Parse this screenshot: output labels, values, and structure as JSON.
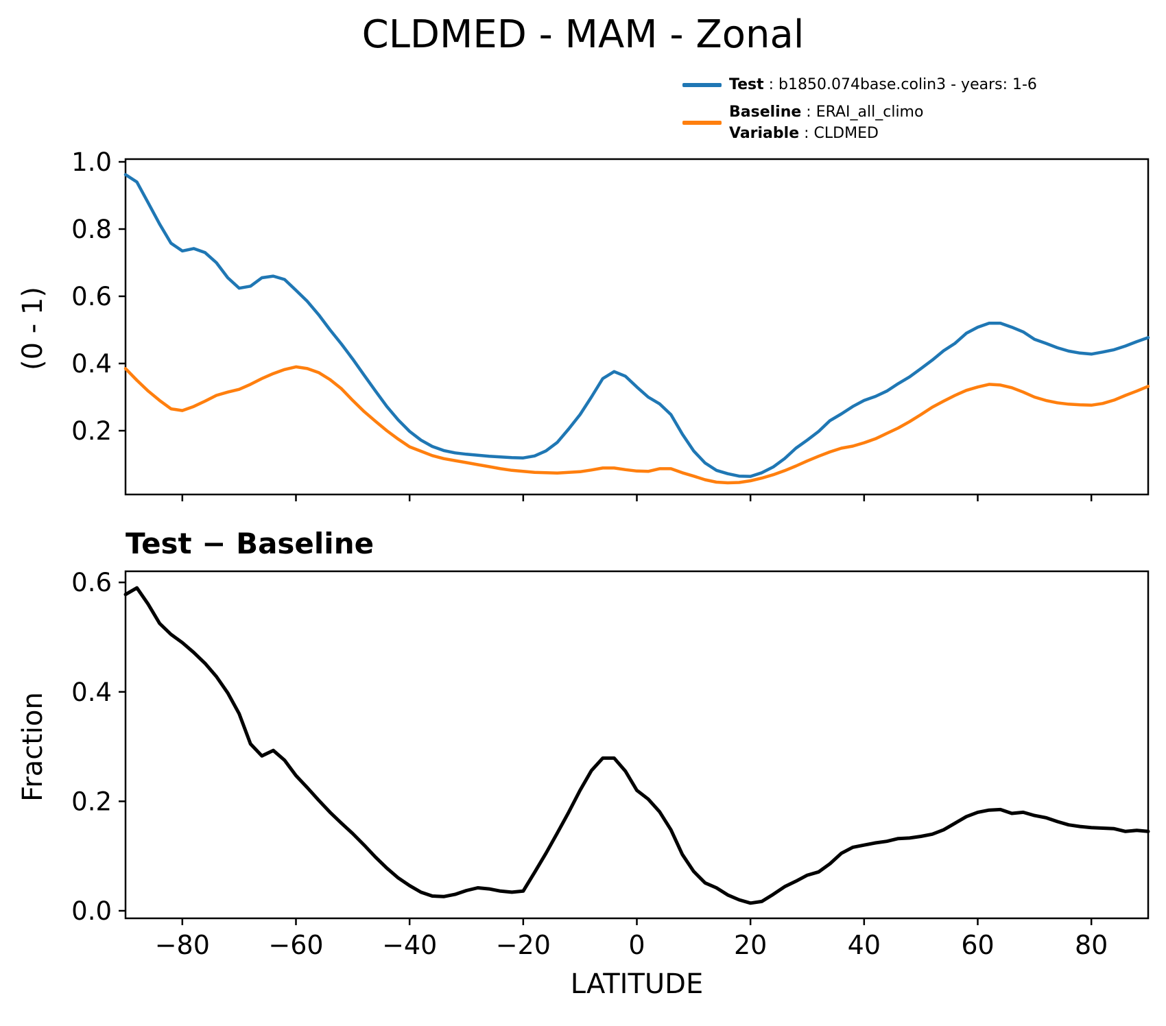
{
  "title": "CLDMED - MAM - Zonal",
  "legend": {
    "test": {
      "bold": "Test",
      "rest": " : b1850.074base.colin3 - years: 1-6"
    },
    "baseline": {
      "bold": "Baseline",
      "rest": " : ERAI_all_climo"
    },
    "variable": {
      "bold": "Variable",
      "rest": " : CLDMED"
    }
  },
  "panels": {
    "top": {
      "ylabel": "(0 - 1)"
    },
    "bottom": {
      "title": "Test − Baseline",
      "ylabel": "Fraction",
      "xlabel": "LATITUDE"
    }
  },
  "colors": {
    "test": "#1f77b4",
    "baseline": "#ff7f0e",
    "difference": "#000000",
    "axis": "#000000"
  },
  "chart_data": [
    {
      "id": "zonal-mean",
      "type": "line",
      "title": "CLDMED - MAM - Zonal",
      "xlabel": "LATITUDE",
      "ylabel": "(0 - 1)",
      "xlim": [
        -90,
        90
      ],
      "ylim": [
        0.01,
        1.008
      ],
      "grid": false,
      "legend_position": "top-right-outside",
      "xticks": [
        -80,
        -60,
        -40,
        -20,
        0,
        20,
        40,
        60,
        80
      ],
      "yticks": [
        1.0,
        0.8,
        0.6,
        0.4,
        0.2
      ],
      "x": [
        -90,
        -88,
        -86,
        -84,
        -82,
        -80,
        -78,
        -76,
        -74,
        -72,
        -70,
        -68,
        -66,
        -64,
        -62,
        -60,
        -58,
        -56,
        -54,
        -52,
        -50,
        -48,
        -46,
        -44,
        -42,
        -40,
        -38,
        -36,
        -34,
        -32,
        -30,
        -28,
        -26,
        -24,
        -22,
        -20,
        -18,
        -16,
        -14,
        -12,
        -10,
        -8,
        -6,
        -4,
        -2,
        0,
        2,
        4,
        6,
        8,
        10,
        12,
        14,
        16,
        18,
        20,
        22,
        24,
        26,
        28,
        30,
        32,
        34,
        36,
        38,
        40,
        42,
        44,
        46,
        48,
        50,
        52,
        54,
        56,
        58,
        60,
        62,
        64,
        66,
        68,
        70,
        72,
        74,
        76,
        78,
        80,
        82,
        84,
        86,
        88,
        90
      ],
      "series": [
        {
          "name": "Test",
          "color": "#1f77b4",
          "values": [
            0.962,
            0.94,
            0.878,
            0.815,
            0.758,
            0.735,
            0.742,
            0.73,
            0.7,
            0.655,
            0.624,
            0.63,
            0.655,
            0.66,
            0.65,
            0.618,
            0.585,
            0.545,
            0.5,
            0.458,
            0.413,
            0.365,
            0.318,
            0.272,
            0.232,
            0.198,
            0.172,
            0.153,
            0.141,
            0.134,
            0.13,
            0.127,
            0.124,
            0.122,
            0.12,
            0.119,
            0.125,
            0.14,
            0.165,
            0.205,
            0.248,
            0.3,
            0.355,
            0.376,
            0.362,
            0.33,
            0.3,
            0.28,
            0.248,
            0.19,
            0.14,
            0.104,
            0.082,
            0.072,
            0.065,
            0.064,
            0.075,
            0.092,
            0.117,
            0.148,
            0.172,
            0.198,
            0.23,
            0.25,
            0.272,
            0.29,
            0.302,
            0.318,
            0.34,
            0.36,
            0.385,
            0.41,
            0.438,
            0.46,
            0.49,
            0.508,
            0.52,
            0.52,
            0.508,
            0.494,
            0.472,
            0.46,
            0.447,
            0.437,
            0.431,
            0.428,
            0.434,
            0.441,
            0.452,
            0.465,
            0.477
          ]
        },
        {
          "name": "Baseline",
          "color": "#ff7f0e",
          "values": [
            0.385,
            0.35,
            0.318,
            0.29,
            0.265,
            0.26,
            0.272,
            0.288,
            0.305,
            0.315,
            0.323,
            0.338,
            0.355,
            0.37,
            0.382,
            0.39,
            0.385,
            0.373,
            0.352,
            0.325,
            0.29,
            0.257,
            0.228,
            0.2,
            0.175,
            0.152,
            0.139,
            0.126,
            0.117,
            0.111,
            0.105,
            0.099,
            0.093,
            0.087,
            0.082,
            0.079,
            0.076,
            0.075,
            0.074,
            0.076,
            0.078,
            0.083,
            0.089,
            0.089,
            0.084,
            0.08,
            0.079,
            0.087,
            0.087,
            0.075,
            0.065,
            0.054,
            0.047,
            0.045,
            0.046,
            0.051,
            0.059,
            0.069,
            0.081,
            0.095,
            0.11,
            0.124,
            0.137,
            0.148,
            0.154,
            0.164,
            0.176,
            0.192,
            0.208,
            0.227,
            0.248,
            0.27,
            0.288,
            0.305,
            0.32,
            0.33,
            0.338,
            0.336,
            0.328,
            0.315,
            0.3,
            0.29,
            0.283,
            0.279,
            0.277,
            0.276,
            0.281,
            0.291,
            0.305,
            0.318,
            0.332
          ]
        }
      ]
    },
    {
      "id": "difference",
      "type": "line",
      "title": "Test − Baseline",
      "xlabel": "LATITUDE",
      "ylabel": "Fraction",
      "xlim": [
        -90,
        90
      ],
      "ylim": [
        -0.016,
        0.62
      ],
      "grid": false,
      "xticks": [
        -80,
        -60,
        -40,
        -20,
        0,
        20,
        40,
        60,
        80
      ],
      "yticks": [
        0.6,
        0.4,
        0.2,
        0.0
      ],
      "x": [
        -90,
        -88,
        -86,
        -84,
        -82,
        -80,
        -78,
        -76,
        -74,
        -72,
        -70,
        -68,
        -66,
        -64,
        -62,
        -60,
        -58,
        -56,
        -54,
        -52,
        -50,
        -48,
        -46,
        -44,
        -42,
        -40,
        -38,
        -36,
        -34,
        -32,
        -30,
        -28,
        -26,
        -24,
        -22,
        -20,
        -18,
        -16,
        -14,
        -12,
        -10,
        -8,
        -6,
        -4,
        -2,
        0,
        2,
        4,
        6,
        8,
        10,
        12,
        14,
        16,
        18,
        20,
        22,
        24,
        26,
        28,
        30,
        32,
        34,
        36,
        38,
        40,
        42,
        44,
        46,
        48,
        50,
        52,
        54,
        56,
        58,
        60,
        62,
        64,
        66,
        68,
        70,
        72,
        74,
        76,
        78,
        80,
        82,
        84,
        86,
        88,
        90
      ],
      "series": [
        {
          "name": "Test − Baseline",
          "color": "#000000",
          "values": [
            0.578,
            0.59,
            0.56,
            0.525,
            0.505,
            0.49,
            0.472,
            0.452,
            0.428,
            0.398,
            0.36,
            0.305,
            0.283,
            0.293,
            0.275,
            0.247,
            0.225,
            0.202,
            0.18,
            0.16,
            0.141,
            0.12,
            0.098,
            0.078,
            0.06,
            0.046,
            0.034,
            0.027,
            0.026,
            0.03,
            0.037,
            0.042,
            0.04,
            0.036,
            0.034,
            0.036,
            0.07,
            0.105,
            0.142,
            0.18,
            0.22,
            0.256,
            0.279,
            0.279,
            0.255,
            0.22,
            0.204,
            0.181,
            0.148,
            0.103,
            0.072,
            0.051,
            0.042,
            0.029,
            0.02,
            0.014,
            0.017,
            0.03,
            0.044,
            0.054,
            0.065,
            0.071,
            0.086,
            0.105,
            0.116,
            0.12,
            0.124,
            0.127,
            0.132,
            0.133,
            0.136,
            0.14,
            0.148,
            0.16,
            0.172,
            0.18,
            0.184,
            0.185,
            0.178,
            0.18,
            0.174,
            0.17,
            0.163,
            0.157,
            0.154,
            0.152,
            0.151,
            0.15,
            0.145,
            0.147,
            0.145
          ]
        }
      ]
    }
  ]
}
